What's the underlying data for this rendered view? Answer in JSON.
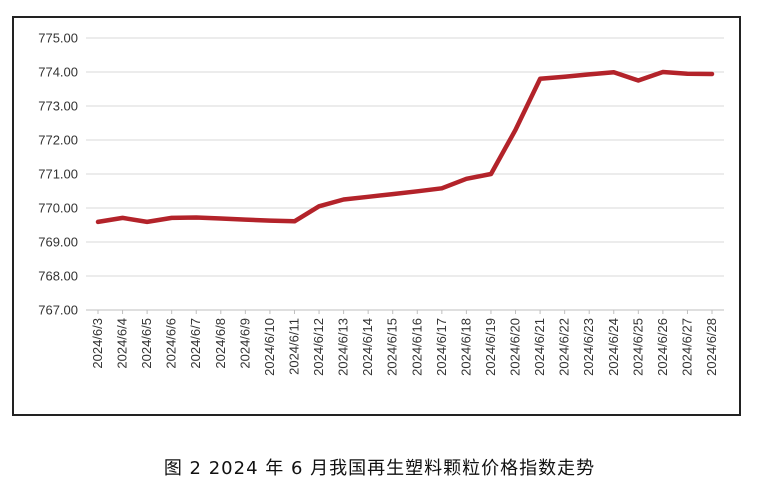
{
  "caption": "图 2  2024 年 6 月我国再生塑料颗粒价格指数走势",
  "chart_data": {
    "type": "line",
    "title": "",
    "xlabel": "",
    "ylabel": "",
    "ylim": [
      767,
      775
    ],
    "yticks": [
      "767.00",
      "768.00",
      "769.00",
      "770.00",
      "771.00",
      "772.00",
      "773.00",
      "774.00",
      "775.00"
    ],
    "grid": true,
    "legend": "none",
    "line_color": "#b3232a",
    "categories": [
      "2024/6/3",
      "2024/6/4",
      "2024/6/5",
      "2024/6/6",
      "2024/6/7",
      "2024/6/8",
      "2024/6/9",
      "2024/6/10",
      "2024/6/11",
      "2024/6/12",
      "2024/6/13",
      "2024/6/14",
      "2024/6/15",
      "2024/6/16",
      "2024/6/17",
      "2024/6/18",
      "2024/6/19",
      "2024/6/20",
      "2024/6/21",
      "2024/6/22",
      "2024/6/23",
      "2024/6/24",
      "2024/6/25",
      "2024/6/26",
      "2024/6/27",
      "2024/6/28"
    ],
    "series": [
      {
        "values": [
          769.59,
          769.71,
          769.59,
          769.71,
          769.72,
          769.69,
          769.66,
          769.63,
          769.61,
          770.05,
          770.25,
          770.33,
          770.41,
          770.49,
          770.58,
          770.86,
          771.0,
          772.3,
          773.8,
          773.86,
          773.93,
          773.99,
          773.75,
          774.0,
          773.95,
          773.94
        ]
      }
    ]
  }
}
